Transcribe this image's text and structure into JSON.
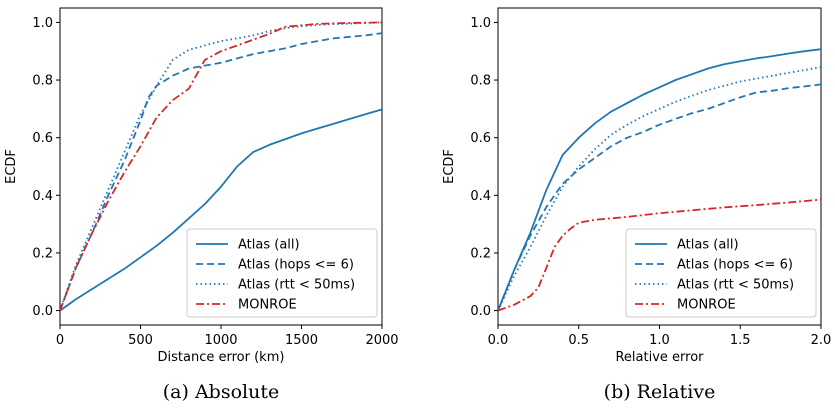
{
  "chart_data": [
    {
      "type": "line",
      "caption": "(a) Absolute",
      "xlabel": "Distance error (km)",
      "ylabel": "ECDF",
      "xlim": [
        0,
        2000
      ],
      "ylim": [
        -0.05,
        1.05
      ],
      "xticks": [
        "0",
        "500",
        "1000",
        "1500",
        "2000"
      ],
      "yticks": [
        "0.0",
        "0.2",
        "0.4",
        "0.6",
        "0.8",
        "1.0"
      ],
      "legend_position": "lower-right",
      "series": [
        {
          "name": "Atlas (all)",
          "color": "#1f77b4",
          "style": "solid",
          "x": [
            0,
            100,
            200,
            300,
            400,
            500,
            600,
            700,
            800,
            900,
            1000,
            1100,
            1200,
            1300,
            1400,
            1500,
            1600,
            1700,
            1800,
            1900,
            2000
          ],
          "y": [
            0.0,
            0.04,
            0.075,
            0.11,
            0.145,
            0.185,
            0.225,
            0.27,
            0.32,
            0.37,
            0.43,
            0.5,
            0.55,
            0.575,
            0.595,
            0.615,
            0.632,
            0.648,
            0.665,
            0.682,
            0.698
          ]
        },
        {
          "name": "Atlas (hops <= 6)",
          "color": "#1f77b4",
          "style": "dashed",
          "x": [
            0,
            100,
            200,
            300,
            400,
            500,
            550,
            600,
            700,
            800,
            900,
            1000,
            1100,
            1200,
            1300,
            1400,
            1500,
            1600,
            1700,
            1800,
            1900,
            2000
          ],
          "y": [
            0.0,
            0.15,
            0.27,
            0.4,
            0.52,
            0.66,
            0.74,
            0.78,
            0.815,
            0.84,
            0.85,
            0.86,
            0.875,
            0.89,
            0.9,
            0.91,
            0.925,
            0.935,
            0.945,
            0.95,
            0.955,
            0.963
          ]
        },
        {
          "name": "Atlas (rtt < 50ms)",
          "color": "#1f77b4",
          "style": "dotted",
          "x": [
            0,
            100,
            200,
            300,
            400,
            500,
            600,
            700,
            800,
            900,
            1000,
            1100,
            1200,
            1300,
            1400,
            1500,
            1600,
            1700,
            1800,
            1900,
            2000
          ],
          "y": [
            0.0,
            0.16,
            0.29,
            0.42,
            0.55,
            0.68,
            0.78,
            0.87,
            0.905,
            0.92,
            0.935,
            0.945,
            0.955,
            0.97,
            0.98,
            0.987,
            0.991,
            0.994,
            0.996,
            0.998,
            1.0
          ]
        },
        {
          "name": "MONROE",
          "color": "#d62728",
          "style": "dashdot",
          "x": [
            0,
            100,
            200,
            300,
            400,
            500,
            600,
            700,
            800,
            900,
            1000,
            1100,
            1200,
            1300,
            1400,
            1500,
            1600,
            1700,
            1800,
            1900,
            2000
          ],
          "y": [
            0.0,
            0.15,
            0.27,
            0.38,
            0.48,
            0.57,
            0.67,
            0.73,
            0.77,
            0.87,
            0.9,
            0.92,
            0.94,
            0.96,
            0.985,
            0.99,
            0.995,
            0.997,
            0.998,
            0.999,
            1.0
          ]
        }
      ]
    },
    {
      "type": "line",
      "caption": "(b) Relative",
      "xlabel": "Relative error",
      "ylabel": "ECDF",
      "xlim": [
        0,
        2.0
      ],
      "ylim": [
        -0.05,
        1.05
      ],
      "xticks": [
        "0.0",
        "0.5",
        "1.0",
        "1.5",
        "2.0"
      ],
      "yticks": [
        "0.0",
        "0.2",
        "0.4",
        "0.6",
        "0.8",
        "1.0"
      ],
      "legend_position": "lower-right",
      "series": [
        {
          "name": "Atlas (all)",
          "color": "#1f77b4",
          "style": "solid",
          "x": [
            0,
            0.1,
            0.2,
            0.3,
            0.4,
            0.5,
            0.6,
            0.7,
            0.8,
            0.9,
            1.0,
            1.1,
            1.2,
            1.3,
            1.4,
            1.5,
            1.6,
            1.7,
            1.8,
            1.9,
            2.0
          ],
          "y": [
            0.0,
            0.14,
            0.27,
            0.42,
            0.54,
            0.6,
            0.65,
            0.69,
            0.72,
            0.75,
            0.775,
            0.8,
            0.82,
            0.84,
            0.855,
            0.865,
            0.875,
            0.883,
            0.892,
            0.9,
            0.907
          ]
        },
        {
          "name": "Atlas (hops <= 6)",
          "color": "#1f77b4",
          "style": "dashed",
          "x": [
            0,
            0.1,
            0.2,
            0.3,
            0.4,
            0.5,
            0.6,
            0.7,
            0.8,
            0.9,
            1.0,
            1.1,
            1.2,
            1.3,
            1.4,
            1.5,
            1.6,
            1.7,
            1.8,
            1.9,
            2.0
          ],
          "y": [
            0.0,
            0.14,
            0.26,
            0.36,
            0.44,
            0.49,
            0.53,
            0.57,
            0.6,
            0.62,
            0.645,
            0.665,
            0.685,
            0.7,
            0.72,
            0.74,
            0.757,
            0.763,
            0.772,
            0.778,
            0.785
          ]
        },
        {
          "name": "Atlas (rtt < 50ms)",
          "color": "#1f77b4",
          "style": "dotted",
          "x": [
            0,
            0.1,
            0.2,
            0.3,
            0.4,
            0.5,
            0.6,
            0.7,
            0.8,
            0.9,
            1.0,
            1.1,
            1.2,
            1.3,
            1.4,
            1.5,
            1.6,
            1.7,
            1.8,
            1.9,
            2.0
          ],
          "y": [
            0.0,
            0.12,
            0.22,
            0.33,
            0.43,
            0.5,
            0.56,
            0.61,
            0.645,
            0.675,
            0.7,
            0.725,
            0.745,
            0.765,
            0.78,
            0.795,
            0.805,
            0.815,
            0.825,
            0.835,
            0.845
          ]
        },
        {
          "name": "MONROE",
          "color": "#d62728",
          "style": "dashdot",
          "x": [
            0,
            0.1,
            0.2,
            0.25,
            0.3,
            0.35,
            0.4,
            0.45,
            0.5,
            0.6,
            0.8,
            1.0,
            1.2,
            1.4,
            1.6,
            1.8,
            2.0
          ],
          "y": [
            0.0,
            0.02,
            0.05,
            0.08,
            0.15,
            0.22,
            0.26,
            0.285,
            0.305,
            0.315,
            0.325,
            0.338,
            0.348,
            0.358,
            0.366,
            0.375,
            0.385
          ]
        }
      ]
    }
  ]
}
